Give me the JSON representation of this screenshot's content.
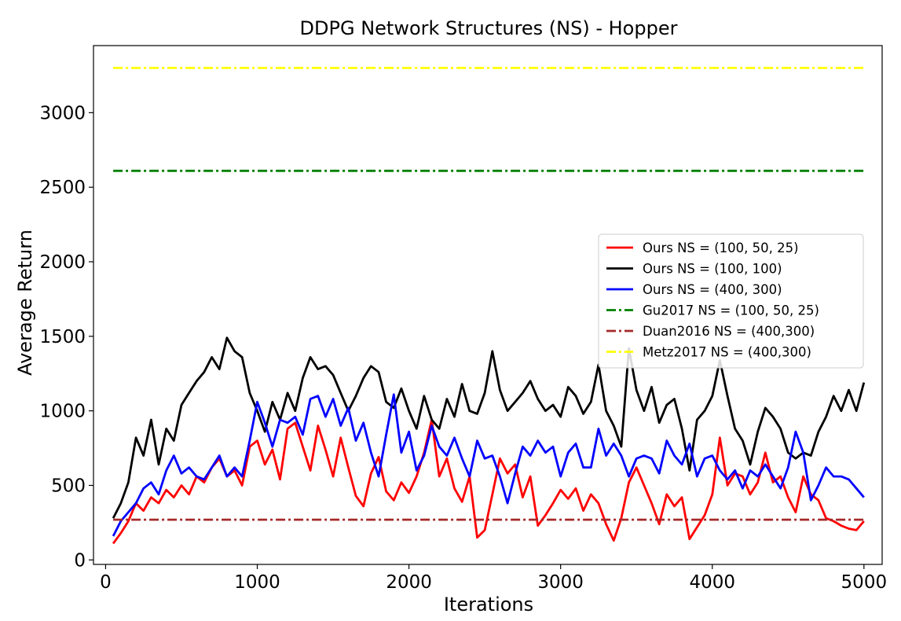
{
  "chart_data": {
    "type": "line",
    "title": "DDPG Network Structures (NS) - Hopper",
    "xlabel": "Iterations",
    "ylabel": "Average Return",
    "xlim": [
      -80,
      5120
    ],
    "ylim": [
      -30,
      3450
    ],
    "xticks": [
      0,
      1000,
      2000,
      3000,
      4000,
      5000
    ],
    "yticks": [
      0,
      500,
      1000,
      1500,
      2000,
      2500,
      3000
    ],
    "grid": false,
    "legend_position": "center-right",
    "series": [
      {
        "name": "Ours NS = (100, 50, 25)",
        "color": "#ff0000",
        "style": "solid",
        "points": [
          [
            50,
            110
          ],
          [
            100,
            180
          ],
          [
            150,
            260
          ],
          [
            200,
            380
          ],
          [
            250,
            330
          ],
          [
            300,
            420
          ],
          [
            350,
            380
          ],
          [
            400,
            470
          ],
          [
            450,
            420
          ],
          [
            500,
            500
          ],
          [
            550,
            440
          ],
          [
            600,
            560
          ],
          [
            650,
            520
          ],
          [
            700,
            620
          ],
          [
            750,
            680
          ],
          [
            800,
            560
          ],
          [
            850,
            600
          ],
          [
            900,
            500
          ],
          [
            950,
            760
          ],
          [
            1000,
            800
          ],
          [
            1050,
            640
          ],
          [
            1100,
            740
          ],
          [
            1150,
            540
          ],
          [
            1200,
            880
          ],
          [
            1250,
            920
          ],
          [
            1300,
            760
          ],
          [
            1350,
            600
          ],
          [
            1400,
            900
          ],
          [
            1450,
            740
          ],
          [
            1500,
            560
          ],
          [
            1550,
            820
          ],
          [
            1600,
            620
          ],
          [
            1650,
            430
          ],
          [
            1700,
            360
          ],
          [
            1750,
            580
          ],
          [
            1800,
            690
          ],
          [
            1850,
            460
          ],
          [
            1900,
            400
          ],
          [
            1950,
            520
          ],
          [
            2000,
            450
          ],
          [
            2050,
            560
          ],
          [
            2100,
            720
          ],
          [
            2150,
            940
          ],
          [
            2200,
            560
          ],
          [
            2250,
            680
          ],
          [
            2300,
            480
          ],
          [
            2350,
            390
          ],
          [
            2400,
            560
          ],
          [
            2450,
            150
          ],
          [
            2500,
            200
          ],
          [
            2550,
            440
          ],
          [
            2600,
            680
          ],
          [
            2650,
            580
          ],
          [
            2700,
            640
          ],
          [
            2750,
            420
          ],
          [
            2800,
            560
          ],
          [
            2850,
            230
          ],
          [
            2900,
            300
          ],
          [
            2950,
            380
          ],
          [
            3000,
            470
          ],
          [
            3050,
            410
          ],
          [
            3100,
            480
          ],
          [
            3150,
            330
          ],
          [
            3200,
            440
          ],
          [
            3250,
            380
          ],
          [
            3300,
            240
          ],
          [
            3350,
            130
          ],
          [
            3400,
            280
          ],
          [
            3450,
            520
          ],
          [
            3500,
            620
          ],
          [
            3550,
            500
          ],
          [
            3600,
            380
          ],
          [
            3650,
            240
          ],
          [
            3700,
            440
          ],
          [
            3750,
            360
          ],
          [
            3800,
            420
          ],
          [
            3850,
            140
          ],
          [
            3900,
            220
          ],
          [
            3950,
            300
          ],
          [
            4000,
            440
          ],
          [
            4050,
            820
          ],
          [
            4100,
            500
          ],
          [
            4150,
            580
          ],
          [
            4200,
            560
          ],
          [
            4250,
            440
          ],
          [
            4300,
            520
          ],
          [
            4350,
            720
          ],
          [
            4400,
            520
          ],
          [
            4450,
            560
          ],
          [
            4500,
            420
          ],
          [
            4550,
            320
          ],
          [
            4600,
            560
          ],
          [
            4650,
            440
          ],
          [
            4700,
            400
          ],
          [
            4750,
            280
          ],
          [
            4800,
            260
          ],
          [
            4850,
            230
          ],
          [
            4900,
            210
          ],
          [
            4950,
            200
          ],
          [
            5000,
            260
          ]
        ]
      },
      {
        "name": "Ours NS = (100, 100)",
        "color": "#000000",
        "style": "solid",
        "points": [
          [
            50,
            280
          ],
          [
            100,
            380
          ],
          [
            150,
            520
          ],
          [
            200,
            820
          ],
          [
            250,
            700
          ],
          [
            300,
            940
          ],
          [
            350,
            640
          ],
          [
            400,
            880
          ],
          [
            450,
            800
          ],
          [
            500,
            1040
          ],
          [
            550,
            1120
          ],
          [
            600,
            1200
          ],
          [
            650,
            1260
          ],
          [
            700,
            1360
          ],
          [
            750,
            1280
          ],
          [
            800,
            1490
          ],
          [
            850,
            1400
          ],
          [
            900,
            1360
          ],
          [
            950,
            1120
          ],
          [
            1000,
            1000
          ],
          [
            1050,
            860
          ],
          [
            1100,
            1060
          ],
          [
            1150,
            940
          ],
          [
            1200,
            1120
          ],
          [
            1250,
            1000
          ],
          [
            1300,
            1220
          ],
          [
            1350,
            1360
          ],
          [
            1400,
            1280
          ],
          [
            1450,
            1300
          ],
          [
            1500,
            1240
          ],
          [
            1550,
            1120
          ],
          [
            1600,
            1000
          ],
          [
            1650,
            1100
          ],
          [
            1700,
            1220
          ],
          [
            1750,
            1300
          ],
          [
            1800,
            1260
          ],
          [
            1850,
            1060
          ],
          [
            1900,
            1020
          ],
          [
            1950,
            1150
          ],
          [
            2000,
            1000
          ],
          [
            2050,
            880
          ],
          [
            2100,
            1100
          ],
          [
            2150,
            940
          ],
          [
            2200,
            880
          ],
          [
            2250,
            1080
          ],
          [
            2300,
            960
          ],
          [
            2350,
            1180
          ],
          [
            2400,
            1000
          ],
          [
            2450,
            980
          ],
          [
            2500,
            1120
          ],
          [
            2550,
            1400
          ],
          [
            2600,
            1140
          ],
          [
            2650,
            1000
          ],
          [
            2700,
            1060
          ],
          [
            2750,
            1120
          ],
          [
            2800,
            1200
          ],
          [
            2850,
            1080
          ],
          [
            2900,
            1000
          ],
          [
            2950,
            1040
          ],
          [
            3000,
            960
          ],
          [
            3050,
            1160
          ],
          [
            3100,
            1100
          ],
          [
            3150,
            980
          ],
          [
            3200,
            1060
          ],
          [
            3250,
            1310
          ],
          [
            3300,
            1000
          ],
          [
            3350,
            900
          ],
          [
            3400,
            760
          ],
          [
            3450,
            1420
          ],
          [
            3500,
            1140
          ],
          [
            3550,
            1000
          ],
          [
            3600,
            1160
          ],
          [
            3650,
            920
          ],
          [
            3700,
            1040
          ],
          [
            3750,
            1080
          ],
          [
            3800,
            880
          ],
          [
            3850,
            600
          ],
          [
            3900,
            940
          ],
          [
            3950,
            1000
          ],
          [
            4000,
            1100
          ],
          [
            4050,
            1340
          ],
          [
            4100,
            1100
          ],
          [
            4150,
            880
          ],
          [
            4200,
            800
          ],
          [
            4250,
            640
          ],
          [
            4300,
            860
          ],
          [
            4350,
            1020
          ],
          [
            4400,
            960
          ],
          [
            4450,
            880
          ],
          [
            4500,
            720
          ],
          [
            4550,
            680
          ],
          [
            4600,
            720
          ],
          [
            4650,
            700
          ],
          [
            4700,
            860
          ],
          [
            4750,
            960
          ],
          [
            4800,
            1100
          ],
          [
            4850,
            1000
          ],
          [
            4900,
            1140
          ],
          [
            4950,
            1000
          ],
          [
            5000,
            1190
          ]
        ]
      },
      {
        "name": "Ours NS = (400, 300)",
        "color": "#0000ff",
        "style": "solid",
        "points": [
          [
            50,
            160
          ],
          [
            100,
            260
          ],
          [
            150,
            320
          ],
          [
            200,
            380
          ],
          [
            250,
            480
          ],
          [
            300,
            520
          ],
          [
            350,
            440
          ],
          [
            400,
            600
          ],
          [
            450,
            700
          ],
          [
            500,
            580
          ],
          [
            550,
            620
          ],
          [
            600,
            560
          ],
          [
            650,
            540
          ],
          [
            700,
            620
          ],
          [
            750,
            700
          ],
          [
            800,
            560
          ],
          [
            850,
            620
          ],
          [
            900,
            560
          ],
          [
            950,
            800
          ],
          [
            1000,
            1060
          ],
          [
            1050,
            920
          ],
          [
            1100,
            760
          ],
          [
            1150,
            940
          ],
          [
            1200,
            920
          ],
          [
            1250,
            960
          ],
          [
            1300,
            840
          ],
          [
            1350,
            1080
          ],
          [
            1400,
            1100
          ],
          [
            1450,
            960
          ],
          [
            1500,
            1080
          ],
          [
            1550,
            900
          ],
          [
            1600,
            1020
          ],
          [
            1650,
            800
          ],
          [
            1700,
            920
          ],
          [
            1750,
            720
          ],
          [
            1800,
            560
          ],
          [
            1850,
            840
          ],
          [
            1900,
            1110
          ],
          [
            1950,
            720
          ],
          [
            2000,
            860
          ],
          [
            2050,
            600
          ],
          [
            2100,
            700
          ],
          [
            2150,
            900
          ],
          [
            2200,
            760
          ],
          [
            2250,
            700
          ],
          [
            2300,
            820
          ],
          [
            2350,
            680
          ],
          [
            2400,
            560
          ],
          [
            2450,
            800
          ],
          [
            2500,
            680
          ],
          [
            2550,
            700
          ],
          [
            2600,
            560
          ],
          [
            2650,
            380
          ],
          [
            2700,
            580
          ],
          [
            2750,
            760
          ],
          [
            2800,
            700
          ],
          [
            2850,
            800
          ],
          [
            2900,
            720
          ],
          [
            2950,
            760
          ],
          [
            3000,
            560
          ],
          [
            3050,
            720
          ],
          [
            3100,
            780
          ],
          [
            3150,
            620
          ],
          [
            3200,
            620
          ],
          [
            3250,
            880
          ],
          [
            3300,
            700
          ],
          [
            3350,
            780
          ],
          [
            3400,
            700
          ],
          [
            3450,
            560
          ],
          [
            3500,
            680
          ],
          [
            3550,
            700
          ],
          [
            3600,
            680
          ],
          [
            3650,
            580
          ],
          [
            3700,
            800
          ],
          [
            3750,
            700
          ],
          [
            3800,
            640
          ],
          [
            3850,
            780
          ],
          [
            3900,
            560
          ],
          [
            3950,
            680
          ],
          [
            4000,
            700
          ],
          [
            4050,
            600
          ],
          [
            4100,
            540
          ],
          [
            4150,
            600
          ],
          [
            4200,
            480
          ],
          [
            4250,
            600
          ],
          [
            4300,
            560
          ],
          [
            4350,
            640
          ],
          [
            4400,
            560
          ],
          [
            4450,
            480
          ],
          [
            4500,
            620
          ],
          [
            4550,
            860
          ],
          [
            4600,
            720
          ],
          [
            4650,
            400
          ],
          [
            4700,
            500
          ],
          [
            4750,
            620
          ],
          [
            4800,
            560
          ],
          [
            4850,
            560
          ],
          [
            4900,
            540
          ],
          [
            4950,
            480
          ],
          [
            5000,
            420
          ]
        ]
      },
      {
        "name": "Gu2017 NS = (100, 50, 25)",
        "color": "#008000",
        "style": "dashdot",
        "points": [
          [
            50,
            2610
          ],
          [
            5000,
            2610
          ]
        ]
      },
      {
        "name": "Duan2016 NS = (400,300)",
        "color": "#a52a2a",
        "style": "dashdot",
        "points": [
          [
            50,
            270
          ],
          [
            5000,
            270
          ]
        ]
      },
      {
        "name": "Metz2017 NS = (400,300)",
        "color": "#ffff00",
        "style": "dashdot",
        "points": [
          [
            50,
            3300
          ],
          [
            5000,
            3300
          ]
        ]
      }
    ]
  }
}
